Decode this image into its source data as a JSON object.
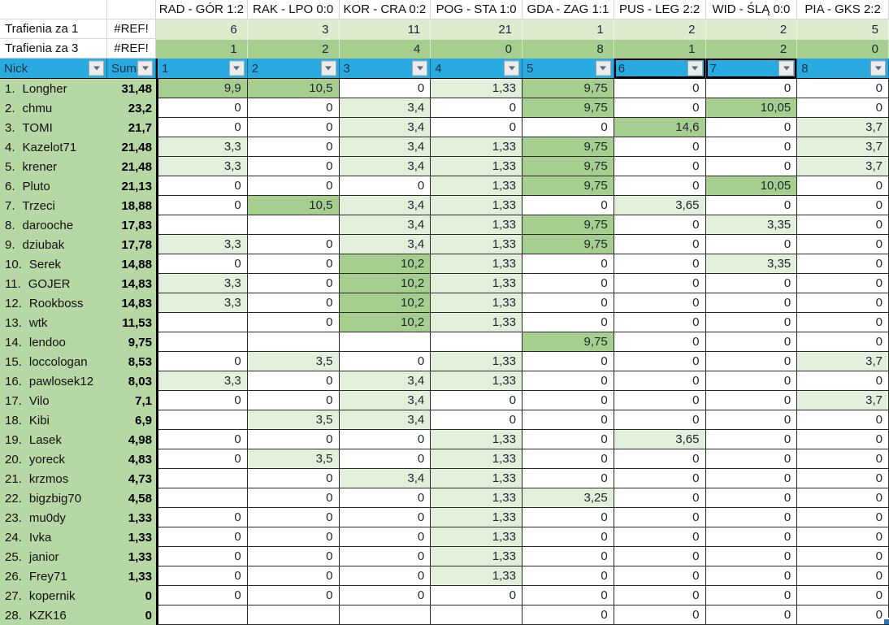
{
  "matches": [
    "RAD - GÓR 1:2",
    "RAK - LPO 0:0",
    "KOR - CRA 0:2",
    "POG - STA 1:0",
    "GDA - ZAG 1:1",
    "PUS - LEG 2:2",
    "WID - ŚLĄ 0:0",
    "PIA - GKS 2:2"
  ],
  "stats": [
    {
      "label": "Trafienia za 1",
      "ref": "#REF!",
      "values": [
        "6",
        "3",
        "11",
        "21",
        "1",
        "2",
        "2",
        "5"
      ]
    },
    {
      "label": "Trafienia za 3",
      "ref": "#REF!",
      "values": [
        "1",
        "2",
        "4",
        "0",
        "8",
        "1",
        "2",
        "0"
      ]
    }
  ],
  "filter": {
    "nick_label": "Nick",
    "suma_label": "Suma",
    "columns": [
      "1",
      "2",
      "3",
      "4",
      "5",
      "6",
      "7",
      "8"
    ],
    "selected_columns": [
      "6",
      "7"
    ]
  },
  "players": [
    {
      "rank": "1.",
      "name": "Longher",
      "suma": "31,48",
      "values": [
        "9,9",
        "10,5",
        "0",
        "1,33",
        "9,75",
        "0",
        "0",
        "0"
      ]
    },
    {
      "rank": "2.",
      "name": "chmu",
      "suma": "23,2",
      "values": [
        "0",
        "0",
        "3,4",
        "0",
        "9,75",
        "0",
        "10,05",
        "0"
      ]
    },
    {
      "rank": "3.",
      "name": "TOMI",
      "suma": "21,7",
      "values": [
        "0",
        "0",
        "3,4",
        "0",
        "0",
        "14,6",
        "0",
        "3,7"
      ]
    },
    {
      "rank": "4.",
      "name": "Kazelot71",
      "suma": "21,48",
      "values": [
        "3,3",
        "0",
        "3,4",
        "1,33",
        "9,75",
        "0",
        "0",
        "3,7"
      ]
    },
    {
      "rank": "5.",
      "name": "krener",
      "suma": "21,48",
      "values": [
        "3,3",
        "0",
        "3,4",
        "1,33",
        "9,75",
        "0",
        "0",
        "3,7"
      ]
    },
    {
      "rank": "6.",
      "name": "Pluto",
      "suma": "21,13",
      "values": [
        "0",
        "0",
        "0",
        "1,33",
        "9,75",
        "0",
        "10,05",
        "0"
      ]
    },
    {
      "rank": "7.",
      "name": "Trzeci",
      "suma": "18,88",
      "values": [
        "0",
        "10,5",
        "3,4",
        "1,33",
        "0",
        "3,65",
        "0",
        "0"
      ]
    },
    {
      "rank": "8.",
      "name": "darooche",
      "suma": "17,83",
      "values": [
        "",
        "",
        "3,4",
        "1,33",
        "9,75",
        "0",
        "3,35",
        "0"
      ]
    },
    {
      "rank": "9.",
      "name": "dziubak",
      "suma": "17,78",
      "values": [
        "3,3",
        "0",
        "3,4",
        "1,33",
        "9,75",
        "0",
        "0",
        "0"
      ]
    },
    {
      "rank": "10.",
      "name": "Serek",
      "suma": "14,88",
      "values": [
        "0",
        "0",
        "10,2",
        "1,33",
        "0",
        "0",
        "3,35",
        "0"
      ]
    },
    {
      "rank": "11.",
      "name": "GOJER",
      "suma": "14,83",
      "values": [
        "3,3",
        "0",
        "10,2",
        "1,33",
        "0",
        "0",
        "0",
        "0"
      ]
    },
    {
      "rank": "12.",
      "name": "Rookboss",
      "suma": "14,83",
      "values": [
        "3,3",
        "0",
        "10,2",
        "1,33",
        "0",
        "0",
        "0",
        "0"
      ]
    },
    {
      "rank": "13.",
      "name": "wtk",
      "suma": "11,53",
      "values": [
        "",
        "0",
        "10,2",
        "1,33",
        "0",
        "0",
        "0",
        "0"
      ]
    },
    {
      "rank": "14.",
      "name": "lendoo",
      "suma": "9,75",
      "values": [
        "",
        "",
        "",
        "",
        "9,75",
        "0",
        "0",
        "0"
      ]
    },
    {
      "rank": "15.",
      "name": "loccologan",
      "suma": "8,53",
      "values": [
        "0",
        "3,5",
        "0",
        "1,33",
        "0",
        "0",
        "0",
        "3,7"
      ]
    },
    {
      "rank": "16.",
      "name": "pawlosek12",
      "suma": "8,03",
      "values": [
        "3,3",
        "0",
        "3,4",
        "1,33",
        "0",
        "0",
        "0",
        "0"
      ]
    },
    {
      "rank": "17.",
      "name": "Vilo",
      "suma": "7,1",
      "values": [
        "0",
        "0",
        "3,4",
        "0",
        "0",
        "0",
        "0",
        "3,7"
      ]
    },
    {
      "rank": "18.",
      "name": "Kibi",
      "suma": "6,9",
      "values": [
        "",
        "3,5",
        "3,4",
        "0",
        "0",
        "0",
        "0",
        "0"
      ]
    },
    {
      "rank": "19.",
      "name": "Lasek",
      "suma": "4,98",
      "values": [
        "0",
        "0",
        "0",
        "1,33",
        "0",
        "3,65",
        "0",
        "0"
      ]
    },
    {
      "rank": "20.",
      "name": "yoreck",
      "suma": "4,83",
      "values": [
        "0",
        "3,5",
        "0",
        "1,33",
        "0",
        "0",
        "0",
        "0"
      ]
    },
    {
      "rank": "21.",
      "name": "krzmos",
      "suma": "4,73",
      "values": [
        "",
        "0",
        "3,4",
        "1,33",
        "0",
        "0",
        "0",
        "0"
      ]
    },
    {
      "rank": "22.",
      "name": "bigzbig70",
      "suma": "4,58",
      "values": [
        "",
        "0",
        "0",
        "1,33",
        "3,25",
        "0",
        "0",
        "0"
      ]
    },
    {
      "rank": "23.",
      "name": "mu0dy",
      "suma": "1,33",
      "values": [
        "0",
        "0",
        "0",
        "1,33",
        "0",
        "0",
        "0",
        "0"
      ]
    },
    {
      "rank": "24.",
      "name": "Ivka",
      "suma": "1,33",
      "values": [
        "0",
        "0",
        "0",
        "1,33",
        "0",
        "0",
        "0",
        "0"
      ]
    },
    {
      "rank": "25.",
      "name": "janior",
      "suma": "1,33",
      "values": [
        "0",
        "0",
        "0",
        "1,33",
        "0",
        "0",
        "0",
        "0"
      ]
    },
    {
      "rank": "26.",
      "name": "Frey71",
      "suma": "1,33",
      "values": [
        "0",
        "0",
        "0",
        "1,33",
        "0",
        "0",
        "0",
        "0"
      ]
    },
    {
      "rank": "27.",
      "name": "kopernik",
      "suma": "0",
      "values": [
        "0",
        "0",
        "0",
        "0",
        "0",
        "0",
        "0",
        "0"
      ]
    },
    {
      "rank": "28.",
      "name": "KZK16",
      "suma": "0",
      "values": [
        "",
        "",
        "",
        "",
        "0",
        "0",
        "0",
        "0"
      ]
    }
  ],
  "colors": {
    "filter_blue": "#29ABE2",
    "name_column_green": "#B7D7A4",
    "cell_green_light": "#E2EFDA",
    "cell_green_dark": "#A6CE8E",
    "stats_row_light_green": "#DDEBCF",
    "fill_handle_blue": "#2E75B6"
  }
}
